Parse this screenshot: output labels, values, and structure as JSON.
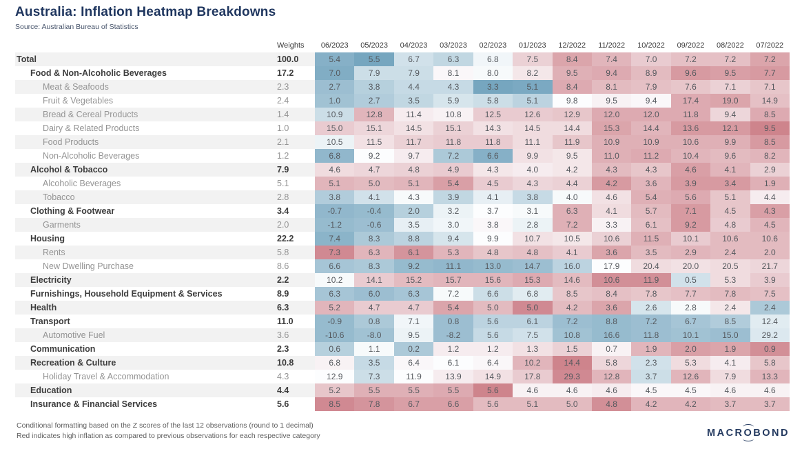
{
  "header": {
    "title": "Australia: Inflation Heatmap Breakdowns",
    "source": "Source: Australian Bureau of Statistics"
  },
  "chart_data": {
    "type": "heatmap",
    "title": "Australia: Inflation Heatmap Breakdowns",
    "source": "Source: Australian Bureau of Statistics",
    "weights_header": "Weights",
    "columns": [
      "06/2023",
      "05/2023",
      "04/2023",
      "03/2023",
      "02/2023",
      "01/2023",
      "12/2022",
      "11/2022",
      "10/2022",
      "09/2022",
      "08/2022",
      "07/2022"
    ],
    "colorscale": {
      "negative_end": "#76a6bf",
      "midpoint": "#fcfdfe",
      "positive_end": "#c8737d",
      "clamp_z": 2.5
    },
    "rows": [
      {
        "label": "Total",
        "level": 0,
        "weight": "100.0",
        "values": [
          5.4,
          5.5,
          6.7,
          6.3,
          6.8,
          7.5,
          8.4,
          7.4,
          7.0,
          7.2,
          7.2,
          7.2
        ],
        "tones": [
          -2.2,
          -2.5,
          -0.8,
          -1.1,
          -0.2,
          0.8,
          1.6,
          1.3,
          0.9,
          1.1,
          1.1,
          1.6
        ]
      },
      {
        "label": "Food & Non-Alcoholic Beverages",
        "level": 1,
        "weight": "17.2",
        "values": [
          7.0,
          7.9,
          7.9,
          8.1,
          8.0,
          8.2,
          9.5,
          9.4,
          8.9,
          9.6,
          9.5,
          7.7
        ],
        "tones": [
          -2.3,
          -0.9,
          -0.9,
          0.1,
          -0.1,
          0.4,
          1.4,
          1.5,
          1.2,
          1.8,
          1.7,
          1.8
        ]
      },
      {
        "label": "Meat & Seafoods",
        "level": 2,
        "weight": "2.3",
        "values": [
          2.7,
          3.8,
          4.4,
          4.3,
          3.3,
          5.1,
          8.4,
          8.1,
          7.9,
          7.6,
          7.1,
          7.1
        ],
        "tones": [
          -1.8,
          -1.3,
          -1.0,
          -1.0,
          -2.5,
          -2.4,
          1.5,
          1.2,
          1.1,
          1.0,
          0.8,
          1.0
        ]
      },
      {
        "label": "Fruit & Vegetables",
        "level": 2,
        "weight": "2.4",
        "values": [
          1.0,
          2.7,
          3.5,
          5.9,
          5.8,
          5.1,
          9.8,
          9.5,
          9.4,
          17.4,
          19.0,
          14.9
        ],
        "tones": [
          -1.7,
          -1.4,
          -1.1,
          -0.7,
          -0.9,
          -1.2,
          0.0,
          0.2,
          0.1,
          1.5,
          1.6,
          1.1
        ]
      },
      {
        "label": "Bread & Cereal Products",
        "level": 2,
        "weight": "1.4",
        "values": [
          10.9,
          12.8,
          11.4,
          10.8,
          12.5,
          12.6,
          12.9,
          12.0,
          12.0,
          11.8,
          9.4,
          8.5
        ],
        "tones": [
          -0.9,
          1.3,
          0.3,
          0.2,
          0.9,
          0.9,
          1.0,
          1.5,
          1.5,
          1.5,
          0.7,
          1.5
        ]
      },
      {
        "label": "Dairy & Related Products",
        "level": 2,
        "weight": "1.0",
        "values": [
          15.0,
          15.1,
          14.5,
          15.1,
          14.3,
          14.5,
          14.4,
          15.3,
          14.4,
          13.6,
          12.1,
          9.5
        ],
        "tones": [
          0.9,
          0.7,
          0.5,
          0.8,
          0.5,
          0.6,
          0.6,
          1.6,
          1.3,
          1.8,
          1.8,
          2.2
        ]
      },
      {
        "label": "Food Products",
        "level": 2,
        "weight": "2.1",
        "values": [
          10.5,
          11.5,
          11.7,
          11.8,
          11.8,
          11.1,
          11.9,
          10.9,
          10.9,
          10.6,
          9.9,
          8.5
        ],
        "tones": [
          -0.3,
          0.5,
          0.8,
          0.9,
          0.9,
          0.6,
          1.0,
          1.4,
          1.4,
          1.4,
          1.4,
          1.8
        ]
      },
      {
        "label": "Non-Alcoholic Beverages",
        "level": 2,
        "weight": "1.2",
        "values": [
          6.8,
          9.2,
          9.7,
          7.2,
          6.6,
          9.9,
          9.5,
          11.0,
          11.2,
          10.4,
          9.6,
          8.2
        ],
        "tones": [
          -2.0,
          0.0,
          0.3,
          -1.5,
          -2.2,
          0.5,
          0.4,
          1.4,
          1.5,
          1.3,
          1.2,
          1.3
        ]
      },
      {
        "label": "Alcohol & Tobacco",
        "level": 1,
        "weight": "7.9",
        "values": [
          4.6,
          4.7,
          4.8,
          4.9,
          4.3,
          4.0,
          4.2,
          4.3,
          4.3,
          4.6,
          4.1,
          2.9
        ],
        "tones": [
          0.6,
          0.7,
          0.8,
          0.9,
          0.4,
          0.3,
          0.4,
          1.2,
          1.0,
          1.7,
          1.3,
          0.8
        ]
      },
      {
        "label": "Alcoholic Beverages",
        "level": 2,
        "weight": "5.1",
        "values": [
          5.1,
          5.0,
          5.1,
          5.4,
          4.5,
          4.3,
          4.4,
          4.2,
          3.6,
          3.9,
          3.4,
          1.9
        ],
        "tones": [
          1.3,
          1.2,
          1.3,
          1.7,
          0.9,
          0.7,
          0.8,
          1.8,
          1.3,
          1.8,
          1.8,
          1.4
        ]
      },
      {
        "label": "Tobacco",
        "level": 2,
        "weight": "2.8",
        "values": [
          3.8,
          4.1,
          4.3,
          3.9,
          4.1,
          3.8,
          4.0,
          4.6,
          5.4,
          5.6,
          5.1,
          4.4
        ],
        "tones": [
          -1.4,
          -0.8,
          -0.1,
          -1.1,
          -0.4,
          -1.0,
          -0.1,
          0.5,
          1.4,
          1.5,
          1.0,
          0.3
        ]
      },
      {
        "label": "Clothing & Footwear",
        "level": 1,
        "weight": "3.4",
        "values": [
          -0.7,
          -0.4,
          2.0,
          3.2,
          3.7,
          3.1,
          6.3,
          4.1,
          5.7,
          7.1,
          4.5,
          4.3
        ],
        "tones": [
          -2.0,
          -1.9,
          -1.3,
          -0.3,
          0.0,
          -0.1,
          1.4,
          0.6,
          1.2,
          1.8,
          1.0,
          1.7
        ]
      },
      {
        "label": "Garments",
        "level": 2,
        "weight": "2.0",
        "values": [
          -1.2,
          -0.6,
          3.5,
          3.0,
          3.8,
          2.8,
          7.2,
          3.3,
          6.1,
          9.2,
          4.8,
          4.5
        ],
        "tones": [
          -1.9,
          -1.8,
          -0.4,
          -0.2,
          0.1,
          -0.3,
          1.4,
          0.2,
          1.1,
          1.8,
          0.9,
          1.3
        ]
      },
      {
        "label": "Housing",
        "level": 1,
        "weight": "22.2",
        "values": [
          7.4,
          8.3,
          8.8,
          9.4,
          9.9,
          10.7,
          10.5,
          10.6,
          11.5,
          10.1,
          10.6,
          10.6
        ],
        "tones": [
          -2.1,
          -1.5,
          -1.2,
          -0.7,
          0.0,
          0.5,
          0.4,
          0.8,
          1.4,
          0.9,
          1.2,
          1.2
        ]
      },
      {
        "label": "Rents",
        "level": 2,
        "weight": "5.8",
        "values": [
          7.3,
          6.3,
          6.1,
          5.3,
          4.8,
          4.8,
          4.1,
          3.6,
          3.5,
          2.9,
          2.4,
          2.0
        ],
        "tones": [
          2.1,
          1.3,
          1.9,
          1.3,
          1.0,
          1.1,
          0.9,
          1.6,
          1.2,
          1.3,
          1.2,
          1.2
        ]
      },
      {
        "label": "New Dwelling Purchase",
        "level": 2,
        "weight": "8.6",
        "values": [
          6.6,
          8.3,
          9.2,
          11.1,
          13.0,
          14.7,
          16.0,
          17.9,
          20.4,
          20.0,
          20.5,
          21.7
        ],
        "tones": [
          -1.6,
          -1.5,
          -1.9,
          -2.0,
          -1.9,
          -1.8,
          -1.2,
          0.0,
          0.6,
          0.5,
          0.6,
          0.7
        ]
      },
      {
        "label": "Electricity",
        "level": 1,
        "weight": "2.2",
        "values": [
          10.2,
          14.1,
          15.2,
          15.7,
          15.6,
          15.3,
          14.6,
          10.6,
          11.9,
          0.5,
          5.3,
          3.9
        ],
        "tones": [
          -0.1,
          0.9,
          1.2,
          1.3,
          1.3,
          1.5,
          1.2,
          2.0,
          2.0,
          -0.8,
          0.6,
          0.9
        ]
      },
      {
        "label": "Furnishings, Household Equipment & Services",
        "level": 1,
        "weight": "8.9",
        "values": [
          6.3,
          6.0,
          6.3,
          7.2,
          6.6,
          6.8,
          8.5,
          8.4,
          7.8,
          7.7,
          7.8,
          7.5
        ],
        "tones": [
          -1.6,
          -1.8,
          -1.6,
          -0.1,
          -0.9,
          -0.5,
          1.0,
          1.1,
          1.0,
          1.1,
          1.2,
          1.1
        ]
      },
      {
        "label": "Health",
        "level": 1,
        "weight": "6.3",
        "values": [
          5.2,
          4.7,
          4.7,
          5.4,
          5.0,
          5.0,
          4.2,
          3.6,
          2.6,
          2.8,
          2.4,
          2.4
        ],
        "tones": [
          1.3,
          0.9,
          0.9,
          1.6,
          1.2,
          2.1,
          1.2,
          1.6,
          -0.7,
          -0.1,
          0.4,
          -1.5
        ]
      },
      {
        "label": "Transport",
        "level": 1,
        "weight": "11.0",
        "values": [
          -0.9,
          0.8,
          7.1,
          0.8,
          5.6,
          6.1,
          7.2,
          8.8,
          7.2,
          6.7,
          8.5,
          12.4
        ],
        "tones": [
          -1.9,
          -1.5,
          -0.2,
          -1.8,
          -1.2,
          -1.2,
          -1.8,
          -1.9,
          -1.8,
          -1.6,
          -1.4,
          -0.5
        ]
      },
      {
        "label": "Automotive Fuel",
        "level": 2,
        "weight": "3.6",
        "values": [
          -10.6,
          -8.0,
          9.5,
          -8.2,
          5.6,
          7.5,
          10.8,
          16.6,
          11.8,
          10.1,
          15.0,
          29.2
        ],
        "tones": [
          -1.9,
          -1.7,
          -0.3,
          -1.8,
          -1.0,
          -0.8,
          -1.7,
          -1.9,
          -1.8,
          -1.7,
          -1.8,
          -0.6
        ]
      },
      {
        "label": "Communication",
        "level": 1,
        "weight": "2.3",
        "values": [
          0.6,
          1.1,
          0.2,
          1.2,
          1.2,
          1.3,
          1.5,
          0.7,
          1.9,
          2.0,
          1.9,
          0.9
        ],
        "tones": [
          -1.3,
          -0.1,
          -1.5,
          0.3,
          0.3,
          0.5,
          0.8,
          0.2,
          1.3,
          1.7,
          1.6,
          2.0
        ]
      },
      {
        "label": "Recreation & Culture",
        "level": 1,
        "weight": "10.8",
        "values": [
          6.8,
          3.5,
          6.4,
          6.1,
          6.4,
          10.2,
          14.4,
          5.8,
          2.3,
          5.3,
          4.1,
          5.8
        ],
        "tones": [
          0.2,
          -1.0,
          0.1,
          0.0,
          0.1,
          1.3,
          2.2,
          0.7,
          -0.8,
          0.6,
          0.3,
          1.0
        ]
      },
      {
        "label": "Holiday Travel & Accommodation",
        "level": 2,
        "weight": "4.3",
        "values": [
          12.9,
          7.3,
          11.9,
          13.9,
          14.9,
          17.8,
          29.3,
          12.8,
          3.7,
          12.6,
          7.9,
          13.3
        ],
        "tones": [
          0.0,
          -0.9,
          0.0,
          0.3,
          0.5,
          0.9,
          2.1,
          1.3,
          -0.9,
          1.3,
          0.6,
          1.3
        ]
      },
      {
        "label": "Education",
        "level": 1,
        "weight": "4.4",
        "values": [
          5.2,
          5.5,
          5.5,
          5.5,
          5.6,
          4.6,
          4.6,
          4.6,
          4.5,
          4.5,
          4.6,
          4.6
        ],
        "tones": [
          1.0,
          1.4,
          1.4,
          1.5,
          2.2,
          0.2,
          0.2,
          0.3,
          0.1,
          0.1,
          0.2,
          0.2
        ]
      },
      {
        "label": "Insurance & Financial Services",
        "level": 1,
        "weight": "5.6",
        "values": [
          8.5,
          7.8,
          6.7,
          6.6,
          5.6,
          5.1,
          5.0,
          4.8,
          4.2,
          4.2,
          3.7,
          3.7
        ],
        "tones": [
          2.1,
          1.9,
          1.7,
          1.7,
          1.2,
          1.2,
          1.2,
          2.0,
          1.3,
          1.3,
          1.2,
          1.2
        ]
      }
    ]
  },
  "footer": {
    "note1": "Conditional formatting based on the Z scores of the last 12 observations (round to 1 decimal)",
    "note2": "Red indicates high inflation as compared to previous observations for each respective category",
    "logo_pre": "MACR",
    "logo_o": "O",
    "logo_post": "BOND"
  }
}
